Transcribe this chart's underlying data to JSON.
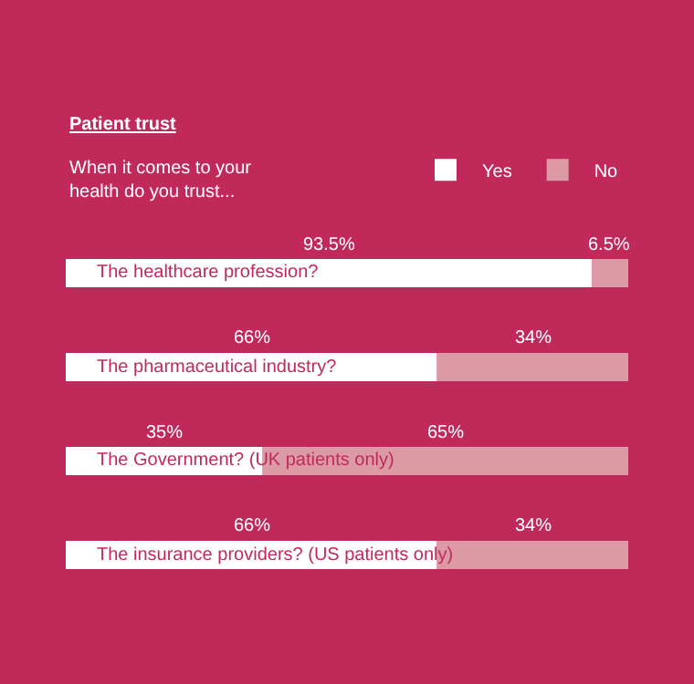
{
  "chart_data": {
    "type": "bar",
    "orientation": "horizontal",
    "stacked": true,
    "title": "Patient trust",
    "subtitle": "When it comes to your\nhealth do you trust...",
    "categories": [
      "The healthcare profession?",
      "The pharmaceutical industry?",
      "The Government? (UK patients only)",
      "The insurance providers? (US patients only)"
    ],
    "series": [
      {
        "name": "Yes",
        "color": "#ffffff",
        "values": [
          93.5,
          66,
          35,
          66
        ],
        "value_labels": [
          "93.5%",
          "66%",
          "35%",
          "66%"
        ]
      },
      {
        "name": "No",
        "color": "#dc9aa6",
        "values": [
          6.5,
          34,
          65,
          34
        ],
        "value_labels": [
          "6.5%",
          "34%",
          "65%",
          "34%"
        ]
      }
    ],
    "xlim": [
      0,
      100
    ],
    "grid": false,
    "legend": "top right"
  }
}
